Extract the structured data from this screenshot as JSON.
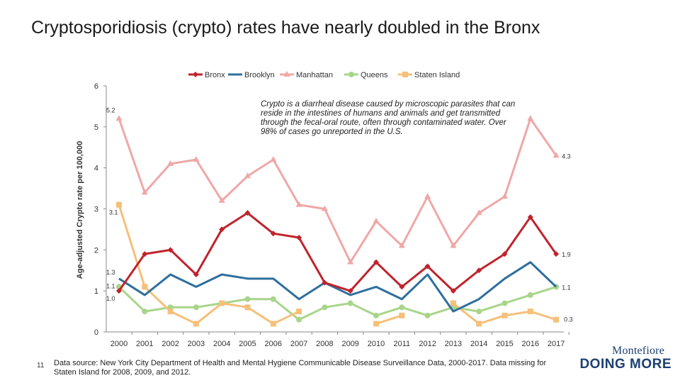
{
  "slide": {
    "title": "Cryptosporidiosis (crypto) rates have nearly doubled in the Bronx",
    "note": "Crypto is a diarrheal disease caused by microscopic parasites that can reside in the intestines of humans and animals and get transmitted through the fecal-oral route, often through contaminated water. Over 98% of cases go unreported in the U.S.",
    "page_number": "11",
    "source": "Data source: New York City Department of Health and Mental Hygiene Communicable Disease Surveillance Data, 2000-2017. Data missing for Staten Island for 2008, 2009, and 2012.",
    "logo_top": "Montefiore",
    "logo_bottom": "DOING MORE"
  },
  "chart_data": {
    "type": "line",
    "title": "",
    "xlabel": "",
    "ylabel": "Age-adjusted Crypto rate per 100,000",
    "ylim": [
      0,
      6
    ],
    "yticks": [
      0,
      1,
      2,
      3,
      4,
      5,
      6
    ],
    "x": [
      "2000",
      "2001",
      "2002",
      "2003",
      "2004",
      "2005",
      "2006",
      "2007",
      "2008",
      "2009",
      "2010",
      "2011",
      "2012",
      "2013",
      "2014",
      "2015",
      "2016",
      "2017"
    ],
    "legend_position": "top",
    "grid": false,
    "series": [
      {
        "name": "Bronx",
        "color": "#c0232c",
        "marker": "diamond",
        "values": [
          1.0,
          1.9,
          2.0,
          1.4,
          2.5,
          2.9,
          2.4,
          2.3,
          1.2,
          1.0,
          1.7,
          1.1,
          1.6,
          1.0,
          1.5,
          1.9,
          2.8,
          1.9
        ]
      },
      {
        "name": "Brooklyn",
        "color": "#2e6f9e",
        "marker": "none",
        "values": [
          1.3,
          0.9,
          1.4,
          1.1,
          1.4,
          1.3,
          1.3,
          0.8,
          1.2,
          0.9,
          1.1,
          0.8,
          1.4,
          0.5,
          0.8,
          1.3,
          1.7,
          1.1
        ]
      },
      {
        "name": "Manhattan",
        "color": "#f0a7a7",
        "marker": "triangle",
        "values": [
          5.2,
          3.4,
          4.1,
          4.2,
          3.2,
          3.8,
          4.2,
          3.1,
          3.0,
          1.7,
          2.7,
          2.1,
          3.3,
          2.1,
          2.9,
          3.3,
          5.2,
          4.3
        ]
      },
      {
        "name": "Queens",
        "color": "#a8d58a",
        "marker": "circle",
        "values": [
          1.1,
          0.5,
          0.6,
          0.6,
          0.7,
          0.8,
          0.8,
          0.3,
          0.6,
          0.7,
          0.4,
          0.6,
          0.4,
          0.6,
          0.5,
          0.7,
          0.9,
          1.1
        ]
      },
      {
        "name": "Staten Island",
        "color": "#f5c07a",
        "marker": "square",
        "values": [
          3.1,
          1.1,
          0.5,
          0.2,
          0.7,
          0.6,
          0.2,
          0.5,
          null,
          null,
          0.2,
          0.4,
          null,
          0.7,
          0.2,
          0.4,
          0.5,
          0.3
        ]
      }
    ],
    "data_labels": [
      {
        "text": "5.2",
        "series": "Manhattan",
        "index": 0,
        "side": "left"
      },
      {
        "text": "3.1",
        "series": "Staten Island",
        "index": 0,
        "side": "right"
      },
      {
        "text": "1.3",
        "series": "Brooklyn",
        "index": 0,
        "side": "left"
      },
      {
        "text": "1.1",
        "series": "Queens",
        "index": 0,
        "side": "left"
      },
      {
        "text": "1.0",
        "series": "Bronx",
        "index": 0,
        "side": "left"
      },
      {
        "text": "4.3",
        "series": "Manhattan",
        "index": 17,
        "side": "right"
      },
      {
        "text": "1.9",
        "series": "Bronx",
        "index": 17,
        "side": "right"
      },
      {
        "text": "1.1",
        "series": "Queens",
        "index": 17,
        "side": "right"
      },
      {
        "text": "0.3",
        "series": "Staten Island",
        "index": 17,
        "side": "right"
      }
    ]
  }
}
